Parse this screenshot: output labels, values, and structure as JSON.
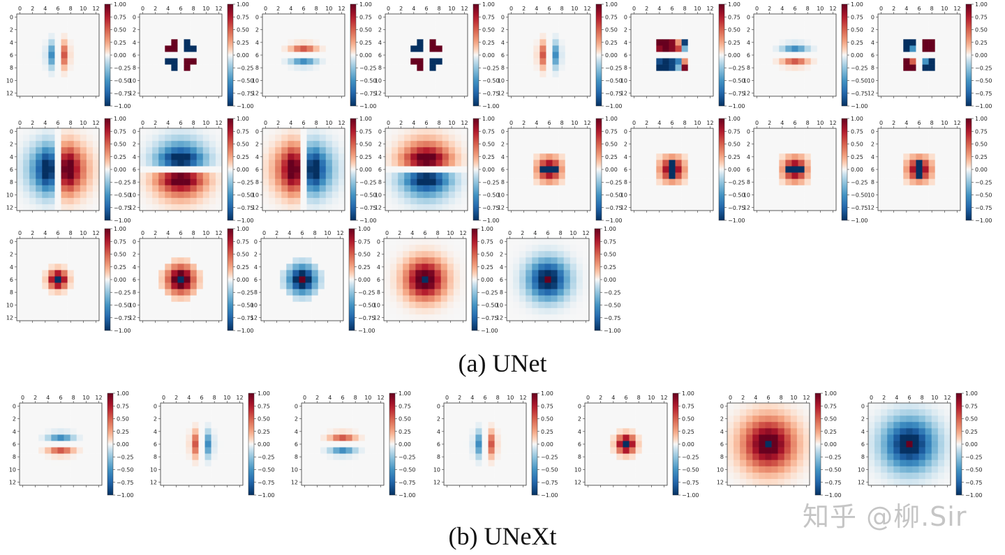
{
  "figure": {
    "caption_a": "(a) UNet",
    "caption_b": "(b) UNeXt",
    "watermark": "知乎 @柳.Sir"
  },
  "colormap": {
    "name": "RdBu_r",
    "neg": "#053061",
    "mid": "#f7f7f7",
    "pos": "#67001f"
  },
  "chart_data": [
    {
      "group": "(a) UNet",
      "type": "heatmap",
      "grid": [
        13,
        13
      ],
      "xticks": [
        "0",
        "2",
        "4",
        "6",
        "8",
        "10",
        "12"
      ],
      "yticks": [
        "0",
        "2",
        "4",
        "6",
        "8",
        "10",
        "12"
      ],
      "colorbar": {
        "min": -1.0,
        "max": 1.0,
        "ticks": [
          "1.00",
          "0.75",
          "0.50",
          "0.25",
          "0.00",
          "−0.25",
          "−0.50",
          "−0.75",
          "−1.00"
        ]
      },
      "kernels": [
        "dx-small",
        "saddle-small",
        "dy-small",
        "saddle-small-inv",
        "dx-small-inv",
        "saddle-small-b",
        "dy-small-inv",
        "saddle-small-c",
        "dx-large",
        "dy-large",
        "dx-large-inv",
        "dy-large-inv",
        "bar-h",
        "bar-v",
        "bar-h",
        "bar-v",
        "ring-small",
        "ring-mid",
        "ring-mid-inv",
        "ring-large",
        "ring-large-inv"
      ]
    },
    {
      "group": "(b) UNeXt",
      "type": "heatmap",
      "grid": [
        13,
        13
      ],
      "xticks": [
        "0",
        "2",
        "4",
        "6",
        "8",
        "10",
        "12"
      ],
      "yticks": [
        "0",
        "2",
        "4",
        "6",
        "8",
        "10",
        "12"
      ],
      "colorbar": {
        "min": -1.0,
        "max": 1.0,
        "ticks": [
          "1.00",
          "0.75",
          "0.50",
          "0.25",
          "0.00",
          "−0.25",
          "−0.50",
          "−0.75",
          "−1.00"
        ]
      },
      "kernels": [
        "dy-small-inv",
        "dx-small-inv",
        "dy-small",
        "dx-small",
        "ring-small",
        "ring-xl",
        "ring-xl-inv"
      ]
    }
  ]
}
